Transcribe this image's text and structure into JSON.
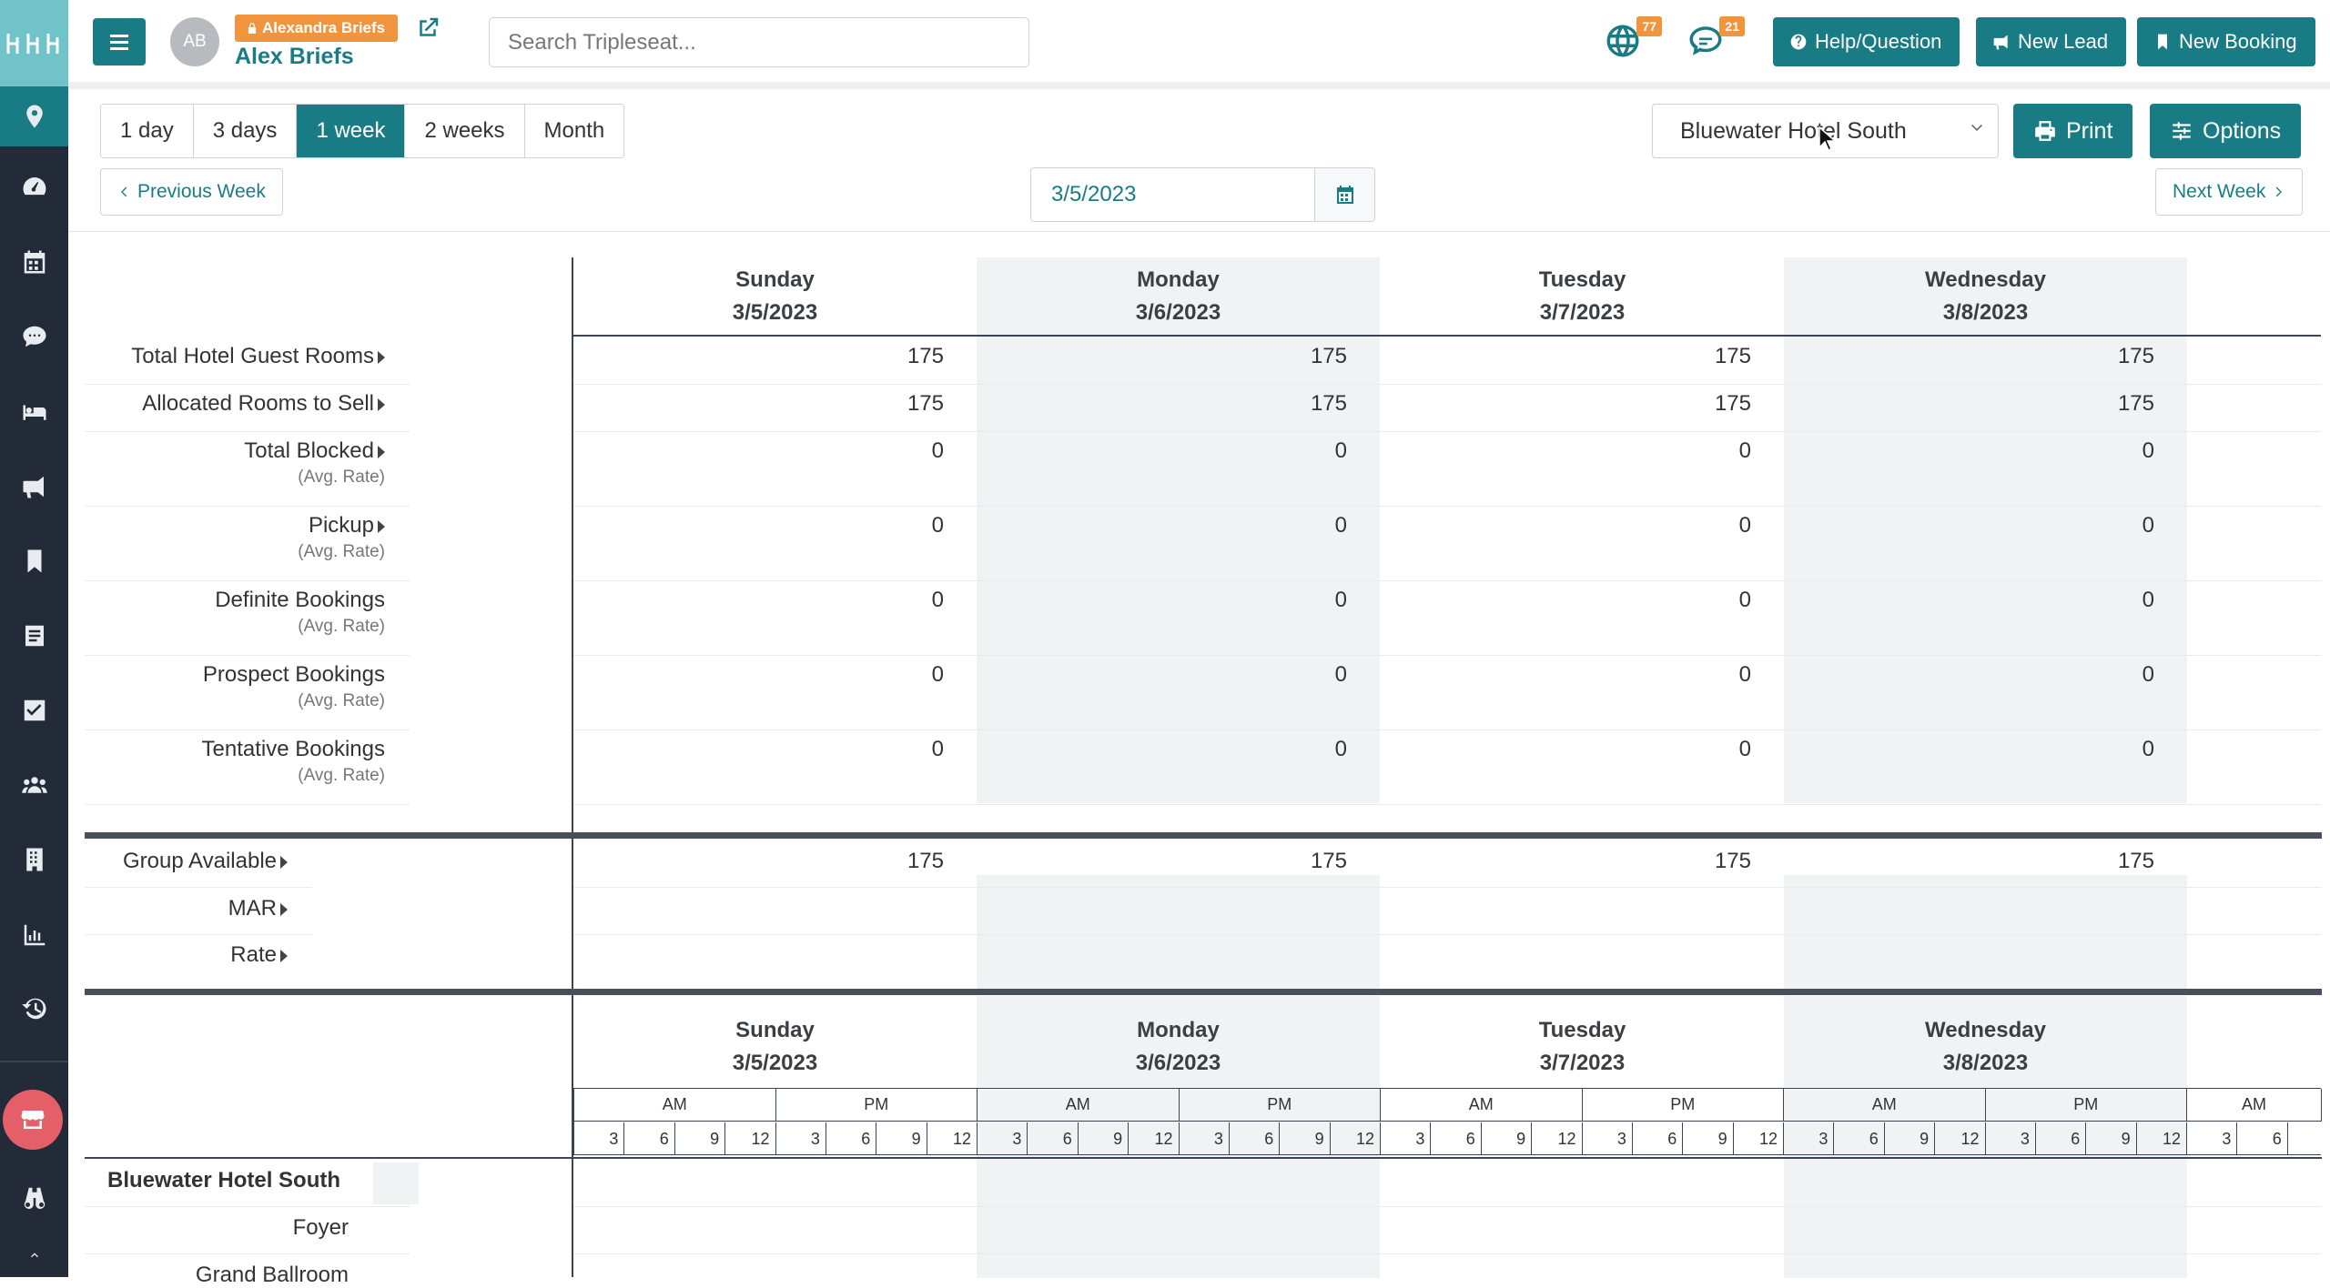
{
  "app": {
    "logo_text": "ꞵꞵꞵ",
    "accent": "#197c85",
    "sidebar_bg": "#232b39"
  },
  "sidebar": {
    "items": [
      {
        "icon": "map-pin-icon"
      },
      {
        "icon": "dashboard-icon"
      },
      {
        "icon": "calendar-icon"
      },
      {
        "icon": "chat-icon"
      },
      {
        "icon": "bed-icon"
      },
      {
        "icon": "megaphone-icon"
      },
      {
        "icon": "bookmark-icon"
      },
      {
        "icon": "document-icon"
      },
      {
        "icon": "check-square-icon"
      },
      {
        "icon": "users-icon"
      },
      {
        "icon": "building-icon"
      },
      {
        "icon": "bar-chart-icon"
      },
      {
        "icon": "history-icon"
      },
      {
        "icon": "store-icon"
      },
      {
        "icon": "binoculars-icon"
      }
    ]
  },
  "header": {
    "avatar_initials": "AB",
    "user_badge": "Alexandra Briefs",
    "user_name": "Alex Briefs",
    "search_placeholder": "Search Tripleseat...",
    "notifications": [
      {
        "icon": "globe-icon",
        "count": "77"
      },
      {
        "icon": "chat-icon",
        "count": "21"
      }
    ],
    "buttons": {
      "help": "Help/Question",
      "new_lead": "New Lead",
      "new_booking": "New Booking"
    }
  },
  "toolbar": {
    "ranges": [
      "1 day",
      "3 days",
      "1 week",
      "2 weeks",
      "Month"
    ],
    "active_range": "1 week",
    "prev": "Previous Week",
    "next": "Next Week",
    "date": "3/5/2023",
    "hotel": "Bluewater Hotel South",
    "print": "Print",
    "options": "Options"
  },
  "days": [
    {
      "name": "Sunday",
      "date": "3/5/2023"
    },
    {
      "name": "Monday",
      "date": "3/6/2023"
    },
    {
      "name": "Tuesday",
      "date": "3/7/2023"
    },
    {
      "name": "Wednesday",
      "date": "3/8/2023"
    }
  ],
  "rows": [
    {
      "label": "Total Hotel Guest Rooms",
      "caret": true,
      "values": [
        "175",
        "175",
        "175",
        "175"
      ]
    },
    {
      "label": "Allocated Rooms to Sell",
      "caret": true,
      "values": [
        "175",
        "175",
        "175",
        "175"
      ]
    },
    {
      "label": "Total Blocked",
      "caret": true,
      "sub": "(Avg. Rate)",
      "values": [
        "0",
        "0",
        "0",
        "0"
      ]
    },
    {
      "label": "Pickup",
      "caret": true,
      "sub": "(Avg. Rate)",
      "values": [
        "0",
        "0",
        "0",
        "0"
      ]
    },
    {
      "label": "Definite Bookings",
      "caret": false,
      "sub": "(Avg. Rate)",
      "values": [
        "0",
        "0",
        "0",
        "0"
      ]
    },
    {
      "label": "Prospect Bookings",
      "caret": false,
      "sub": "(Avg. Rate)",
      "values": [
        "0",
        "0",
        "0",
        "0"
      ]
    },
    {
      "label": "Tentative Bookings",
      "caret": false,
      "sub": "(Avg. Rate)",
      "values": [
        "0",
        "0",
        "0",
        "0"
      ]
    }
  ],
  "group_rows": [
    {
      "label": "Group Available",
      "values": [
        "175",
        "175",
        "175",
        "175"
      ]
    },
    {
      "label": "MAR",
      "values": [
        "",
        "",
        "",
        ""
      ]
    },
    {
      "label": "Rate",
      "values": [
        "",
        "",
        "",
        ""
      ]
    }
  ],
  "timeline": {
    "ampm": [
      "AM",
      "PM",
      "AM",
      "PM",
      "AM",
      "PM",
      "AM",
      "PM",
      "AM"
    ],
    "hours": [
      "3",
      "6",
      "9",
      "12",
      "3",
      "6",
      "9",
      "12",
      "3",
      "6",
      "9",
      "12",
      "3",
      "6",
      "9",
      "12",
      "3",
      "6",
      "9",
      "12",
      "3",
      "6",
      "9",
      "12",
      "3",
      "6",
      "9",
      "12",
      "3",
      "6",
      "9",
      "12",
      "3",
      "6"
    ]
  },
  "spaces": {
    "hotel": "Bluewater Hotel South",
    "rooms": [
      "Foyer",
      "Grand Ballroom"
    ]
  }
}
